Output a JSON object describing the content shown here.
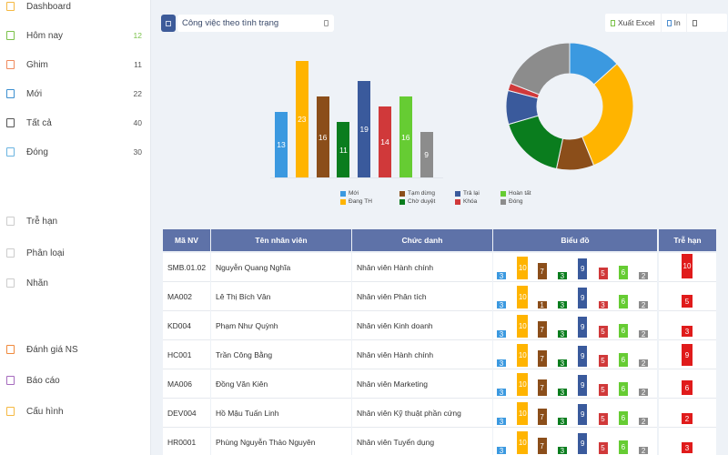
{
  "sidebar": {
    "items": [
      {
        "label": "Dashboard",
        "count": "",
        "icon": "dashboard-icon",
        "color": "#f5b942",
        "countColor": "#555"
      },
      {
        "label": "Hôm nay",
        "count": "12",
        "icon": "today-icon",
        "color": "#7bc24a",
        "countColor": "#7bc24a"
      },
      {
        "label": "Ghim",
        "count": "11",
        "icon": "pin-icon",
        "color": "#f08a5d",
        "countColor": "#555"
      },
      {
        "label": "Mới",
        "count": "22",
        "icon": "new-icon",
        "color": "#3b8fd0",
        "countColor": "#555"
      },
      {
        "label": "Tất cả",
        "count": "40",
        "icon": "all-icon",
        "color": "#555555",
        "countColor": "#555"
      },
      {
        "label": "Đóng",
        "count": "30",
        "icon": "closed-icon",
        "color": "#6ab4e0",
        "countColor": "#555"
      },
      {
        "label": "Trễ hạn",
        "count": "",
        "icon": "overdue-icon",
        "color": "#cccccc",
        "countColor": "#555"
      },
      {
        "label": "Phân loại",
        "count": "",
        "icon": "category-icon",
        "color": "#cccccc",
        "countColor": "#555"
      },
      {
        "label": "Nhãn",
        "count": "",
        "icon": "tag-icon",
        "color": "#cccccc",
        "countColor": "#555"
      },
      {
        "label": "Đánh giá NS",
        "count": "",
        "icon": "evaluation-icon",
        "color": "#f08a3d",
        "countColor": "#555"
      },
      {
        "label": "Báo cáo",
        "count": "",
        "icon": "report-icon",
        "color": "#a66bbe",
        "countColor": "#555"
      },
      {
        "label": "Cấu hình",
        "count": "",
        "icon": "settings-icon",
        "color": "#f5b942",
        "countColor": "#555"
      }
    ]
  },
  "toolbar": {
    "filter_value": "Công việc theo tình trạng",
    "export_label": "Xuất Excel",
    "print_label": "In"
  },
  "chart_data": [
    {
      "type": "bar",
      "title": "",
      "categories": [
        "Mới",
        "Đang TH",
        "Tạm dừng",
        "Chờ duyệt",
        "Trả lại",
        "Khóa",
        "Hoàn tất",
        "Đóng"
      ],
      "values": [
        13,
        23,
        16,
        11,
        19,
        14,
        16,
        9
      ],
      "colors": [
        "#3b99e0",
        "#ffb400",
        "#8b4e1a",
        "#0a7d1e",
        "#3a5a9c",
        "#d0393a",
        "#66cc33",
        "#8c8c8c"
      ],
      "xlabel": "",
      "ylabel": "",
      "ylim": [
        0,
        25
      ],
      "grid": false,
      "legend_position": "bottom"
    },
    {
      "type": "pie",
      "title": "",
      "donut": true,
      "categories": [
        "Mới",
        "Đang TH",
        "Tạm dừng",
        "Chờ duyệt",
        "Trả lại",
        "Khóa",
        "Đóng"
      ],
      "values": [
        14,
        32,
        10,
        18,
        9,
        2,
        20
      ],
      "colors": [
        "#3b99e0",
        "#ffb400",
        "#8b4e1a",
        "#0a7d1e",
        "#3a5a9c",
        "#d0393a",
        "#8c8c8c"
      ]
    }
  ],
  "legend": [
    {
      "label": "Mới",
      "color": "#3b99e0"
    },
    {
      "label": "Đang TH",
      "color": "#ffb400"
    },
    {
      "label": "Tạm dừng",
      "color": "#8b4e1a"
    },
    {
      "label": "Chờ duyệt",
      "color": "#0a7d1e"
    },
    {
      "label": "Trả lại",
      "color": "#3a5a9c"
    },
    {
      "label": "Khóa",
      "color": "#d0393a"
    },
    {
      "label": "Hoàn tất",
      "color": "#66cc33"
    },
    {
      "label": "Đóng",
      "color": "#8c8c8c"
    }
  ],
  "table": {
    "headers": [
      "Mã NV",
      "Tên nhân viên",
      "Chức danh",
      "Biểu đồ",
      "Trễ hạn"
    ],
    "rows": [
      {
        "id": "SMB.01.02",
        "name": "Nguyễn Quang Nghĩa",
        "title": "Nhân viên Hành chính",
        "bars": [
          3,
          10,
          7,
          3,
          9,
          5,
          6,
          2
        ],
        "late": "10"
      },
      {
        "id": "MA002",
        "name": "Lê Thị Bích Vân",
        "title": "Nhân viên Phân tích",
        "bars": [
          3,
          10,
          1,
          3,
          9,
          3,
          6,
          2
        ],
        "late": "5"
      },
      {
        "id": "KD004",
        "name": "Phạm Như Quỳnh",
        "title": "Nhân viên Kinh doanh",
        "bars": [
          3,
          10,
          7,
          3,
          9,
          5,
          6,
          2
        ],
        "late": "3"
      },
      {
        "id": "HC001",
        "name": "Trần Công Bằng",
        "title": "Nhân viên Hành chính",
        "bars": [
          3,
          10,
          7,
          3,
          9,
          5,
          6,
          2
        ],
        "late": "9"
      },
      {
        "id": "MA006",
        "name": "Đồng Văn Kiên",
        "title": "Nhân viên Marketing",
        "bars": [
          3,
          10,
          7,
          3,
          9,
          5,
          6,
          2
        ],
        "late": "6"
      },
      {
        "id": "DEV004",
        "name": "Hồ Mậu Tuấn Linh",
        "title": "Nhân viên Kỹ thuật phần cứng",
        "bars": [
          3,
          10,
          7,
          3,
          9,
          5,
          6,
          2
        ],
        "late": "2"
      },
      {
        "id": "HR0001",
        "name": "Phùng Nguyễn Thảo Nguyên",
        "title": "Nhân viên Tuyển dụng",
        "bars": [
          3,
          10,
          7,
          3,
          9,
          5,
          6,
          2
        ],
        "late": "3"
      }
    ]
  }
}
